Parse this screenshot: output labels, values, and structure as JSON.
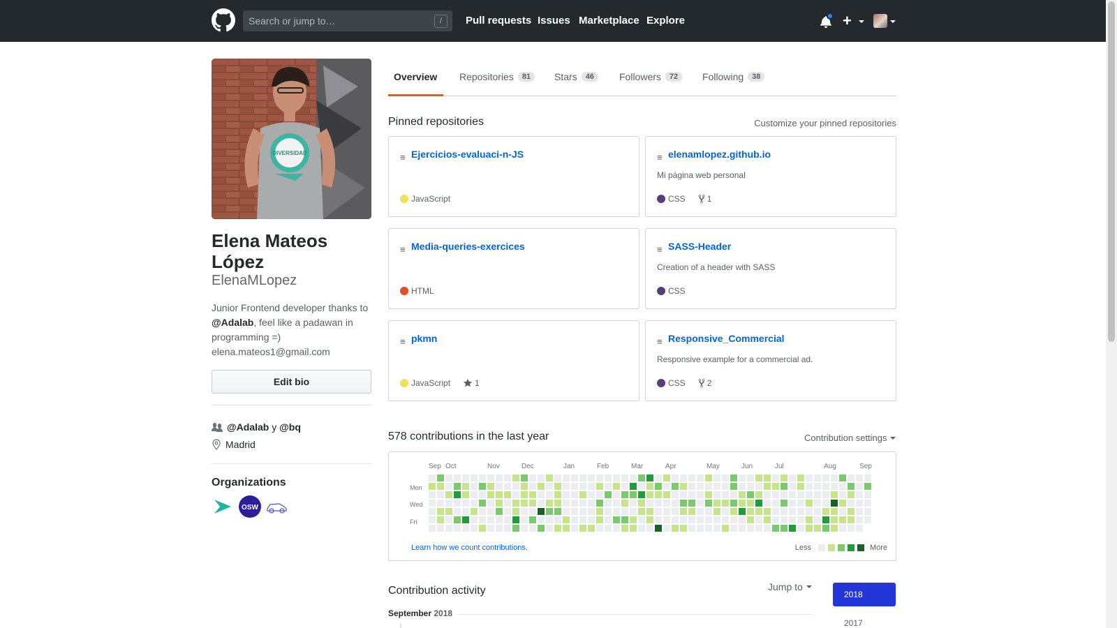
{
  "header": {
    "search_placeholder": "Search or jump to…",
    "search_shortcut": "/",
    "nav": [
      "Pull requests",
      "Issues",
      "Marketplace",
      "Explore"
    ],
    "plus_label": "+"
  },
  "profile": {
    "fullname": "Elena Mateos López",
    "username": "ElenaMLopez",
    "bio_prefix": "Junior Frontend developer thanks to ",
    "bio_mention": "@Adalab",
    "bio_suffix": ", feel like a padawan in programming =)",
    "email": "elena.mateos1@gmail.com",
    "edit_bio_label": "Edit bio",
    "company_a": "@Adalab",
    "company_join": " y ",
    "company_b": "@bq",
    "location": "Madrid",
    "organizations_heading": "Organizations",
    "photo_shirt_text": "DIVERSIDAD",
    "org_osw_text": "OSW"
  },
  "tabs": [
    {
      "label": "Overview",
      "count": null
    },
    {
      "label": "Repositories",
      "count": "81"
    },
    {
      "label": "Stars",
      "count": "46"
    },
    {
      "label": "Followers",
      "count": "72"
    },
    {
      "label": "Following",
      "count": "38"
    }
  ],
  "pinned": {
    "title": "Pinned repositories",
    "customize": "Customize your pinned repositories",
    "repos": [
      {
        "name": "Ejercicios-evaluaci-n-JS",
        "description": "",
        "language": "JavaScript",
        "lang_color": "#f1e05a",
        "stars": "",
        "forks": ""
      },
      {
        "name": "elenamlopez.github.io",
        "description": "Mi página web personal",
        "language": "CSS",
        "lang_color": "#563d7c",
        "stars": "",
        "forks": "1"
      },
      {
        "name": "Media-queries-exercices",
        "description": "",
        "language": "HTML",
        "lang_color": "#e34c26",
        "stars": "",
        "forks": ""
      },
      {
        "name": "SASS-Header",
        "description": "Creation of a header with SASS",
        "language": "CSS",
        "lang_color": "#563d7c",
        "stars": "",
        "forks": ""
      },
      {
        "name": "pkmn",
        "description": "",
        "language": "JavaScript",
        "lang_color": "#f1e05a",
        "stars": "1",
        "forks": ""
      },
      {
        "name": "Responsive_Commercial",
        "description": "Responsive example for a commercial ad.",
        "language": "CSS",
        "lang_color": "#563d7c",
        "stars": "",
        "forks": "2"
      }
    ]
  },
  "contributions": {
    "title": "578 contributions in the last year",
    "settings": "Contribution settings",
    "months": [
      "Sep",
      "Oct",
      "Nov",
      "Dec",
      "Jan",
      "Feb",
      "Mar",
      "Apr",
      "May",
      "Jun",
      "Jul",
      "Aug",
      "Sep"
    ],
    "days": [
      "Mon",
      "Wed",
      "Fri"
    ],
    "learn_link": "Learn how we count contributions.",
    "legend_less": "Less",
    "legend_more": "More",
    "level_colors": [
      "#ebedf0",
      "#c6e48b",
      "#7bc96f",
      "#239a3b",
      "#196127"
    ]
  },
  "activity": {
    "title": "Contribution activity",
    "jump_to": "Jump to",
    "month": "September",
    "year": "2018",
    "years": [
      "2018",
      "2017"
    ]
  }
}
